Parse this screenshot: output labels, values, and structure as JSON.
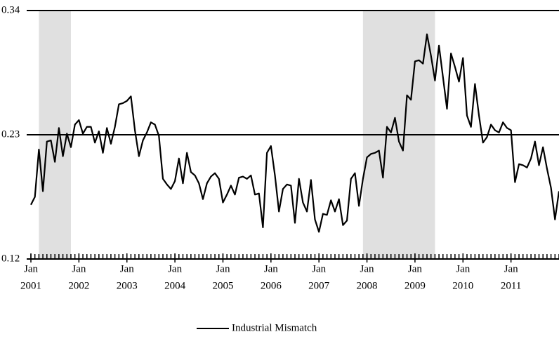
{
  "chart_data": {
    "type": "line",
    "x": [
      "2001-01",
      "2001-02",
      "2001-03",
      "2001-04",
      "2001-05",
      "2001-06",
      "2001-07",
      "2001-08",
      "2001-09",
      "2001-10",
      "2001-11",
      "2001-12",
      "2002-01",
      "2002-02",
      "2002-03",
      "2002-04",
      "2002-05",
      "2002-06",
      "2002-07",
      "2002-08",
      "2002-09",
      "2002-10",
      "2002-11",
      "2002-12",
      "2003-01",
      "2003-02",
      "2003-03",
      "2003-04",
      "2003-05",
      "2003-06",
      "2003-07",
      "2003-08",
      "2003-09",
      "2003-10",
      "2003-11",
      "2003-12",
      "2004-01",
      "2004-02",
      "2004-03",
      "2004-04",
      "2004-05",
      "2004-06",
      "2004-07",
      "2004-08",
      "2004-09",
      "2004-10",
      "2004-11",
      "2004-12",
      "2005-01",
      "2005-02",
      "2005-03",
      "2005-04",
      "2005-05",
      "2005-06",
      "2005-07",
      "2005-08",
      "2005-09",
      "2005-10",
      "2005-11",
      "2005-12",
      "2006-01",
      "2006-02",
      "2006-03",
      "2006-04",
      "2006-05",
      "2006-06",
      "2006-07",
      "2006-08",
      "2006-09",
      "2006-10",
      "2006-11",
      "2006-12",
      "2007-01",
      "2007-02",
      "2007-03",
      "2007-04",
      "2007-05",
      "2007-06",
      "2007-07",
      "2007-08",
      "2007-09",
      "2007-10",
      "2007-11",
      "2007-12",
      "2008-01",
      "2008-02",
      "2008-03",
      "2008-04",
      "2008-05",
      "2008-06",
      "2008-07",
      "2008-08",
      "2008-09",
      "2008-10",
      "2008-11",
      "2008-12",
      "2009-01",
      "2009-02",
      "2009-03",
      "2009-04",
      "2009-05",
      "2009-06",
      "2009-07",
      "2009-08",
      "2009-09",
      "2009-10",
      "2009-11",
      "2009-12",
      "2010-01",
      "2010-02",
      "2010-03",
      "2010-04",
      "2010-05",
      "2010-06",
      "2010-07",
      "2010-08",
      "2010-09",
      "2010-10",
      "2010-11",
      "2010-12",
      "2011-01",
      "2011-02",
      "2011-03",
      "2011-04",
      "2011-05",
      "2011-06",
      "2011-07",
      "2011-08",
      "2011-09",
      "2011-10",
      "2011-11",
      "2011-12",
      "2012-01"
    ],
    "series": [
      {
        "name": "Industrial Mismatch",
        "color": "#000000",
        "values": [
          0.168,
          0.175,
          0.217,
          0.18,
          0.224,
          0.225,
          0.206,
          0.236,
          0.211,
          0.231,
          0.219,
          0.239,
          0.243,
          0.231,
          0.237,
          0.237,
          0.223,
          0.233,
          0.214,
          0.236,
          0.222,
          0.237,
          0.257,
          0.258,
          0.26,
          0.264,
          0.234,
          0.211,
          0.225,
          0.232,
          0.241,
          0.239,
          0.229,
          0.191,
          0.186,
          0.182,
          0.189,
          0.209,
          0.187,
          0.214,
          0.197,
          0.194,
          0.187,
          0.173,
          0.187,
          0.193,
          0.196,
          0.191,
          0.17,
          0.177,
          0.185,
          0.177,
          0.192,
          0.193,
          0.191,
          0.194,
          0.177,
          0.178,
          0.148,
          0.214,
          0.22,
          0.194,
          0.162,
          0.182,
          0.186,
          0.185,
          0.152,
          0.191,
          0.17,
          0.162,
          0.19,
          0.155,
          0.144,
          0.16,
          0.159,
          0.172,
          0.162,
          0.173,
          0.15,
          0.154,
          0.191,
          0.196,
          0.167,
          0.191,
          0.21,
          0.213,
          0.214,
          0.216,
          0.192,
          0.237,
          0.232,
          0.245,
          0.224,
          0.216,
          0.265,
          0.261,
          0.295,
          0.296,
          0.293,
          0.319,
          0.3,
          0.278,
          0.309,
          0.281,
          0.253,
          0.302,
          0.29,
          0.277,
          0.298,
          0.247,
          0.237,
          0.275,
          0.247,
          0.223,
          0.228,
          0.239,
          0.234,
          0.232,
          0.241,
          0.236,
          0.234,
          0.188,
          0.204,
          0.203,
          0.201,
          0.209,
          0.224,
          0.203,
          0.219,
          0.2,
          0.183,
          0.155,
          0.18
        ]
      }
    ],
    "xlim": [
      "2001-01",
      "2012-01"
    ],
    "xticks": [
      {
        "value": "2001-01",
        "label": [
          "Jan",
          "2001"
        ]
      },
      {
        "value": "2002-01",
        "label": [
          "Jan",
          "2002"
        ]
      },
      {
        "value": "2003-01",
        "label": [
          "Jan",
          "2003"
        ]
      },
      {
        "value": "2004-01",
        "label": [
          "Jan",
          "2004"
        ]
      },
      {
        "value": "2005-01",
        "label": [
          "Jan",
          "2005"
        ]
      },
      {
        "value": "2006-01",
        "label": [
          "Jan",
          "2006"
        ]
      },
      {
        "value": "2007-01",
        "label": [
          "Jan",
          "2007"
        ]
      },
      {
        "value": "2008-01",
        "label": [
          "Jan",
          "2008"
        ]
      },
      {
        "value": "2009-01",
        "label": [
          "Jan",
          "2009"
        ]
      },
      {
        "value": "2010-01",
        "label": [
          "Jan",
          "2010"
        ]
      },
      {
        "value": "2011-01",
        "label": [
          "Jan",
          "2011"
        ]
      }
    ],
    "ylim": [
      0.12,
      0.34
    ],
    "yticks": [
      0.12,
      0.23,
      0.34
    ],
    "grid": true,
    "shaded_ranges": [
      [
        "2001-03",
        "2001-11"
      ],
      [
        "2007-12",
        "2009-06"
      ]
    ],
    "shade_color": "#e0e0e0",
    "legend": "bottom"
  }
}
